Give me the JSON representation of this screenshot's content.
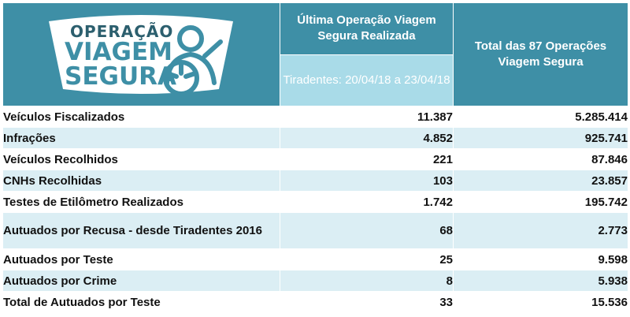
{
  "logo": {
    "line1": "OPERAÇÃO",
    "line2": "VIAGEM",
    "line3": "SEGURA"
  },
  "header": {
    "last_operation": "Última Operação Viagem Segura Realizada",
    "period": "Tiradentes: 20/04/18 a 23/04/18",
    "total": "Total das 87 Operações Viagem Segura"
  },
  "rows": [
    {
      "label": "Veículos Fiscalizados",
      "last": "11.387",
      "total": "5.285.414"
    },
    {
      "label": "Infrações",
      "last": "4.852",
      "total": "925.741"
    },
    {
      "label": "Veículos Recolhidos",
      "last": "221",
      "total": "87.846"
    },
    {
      "label": "CNHs Recolhidas",
      "last": "103",
      "total": "23.857"
    },
    {
      "label": "Testes de Etilômetro Realizados",
      "last": "1.742",
      "total": "195.742"
    },
    {
      "label": "Autuados por Recusa - desde Tiradentes 2016",
      "last": "68",
      "total": "2.773"
    },
    {
      "label": "Autuados por Teste",
      "last": "25",
      "total": "9.598"
    },
    {
      "label": "Autuados por Crime",
      "last": "8",
      "total": "5.938"
    },
    {
      "label": "Total de Autuados por Teste",
      "last": "33",
      "total": "15.536"
    }
  ],
  "colors": {
    "header_bg": "#3e8fa6",
    "subheader_bg": "#a9dbe8",
    "row_alt_bg": "#dbeef4"
  }
}
